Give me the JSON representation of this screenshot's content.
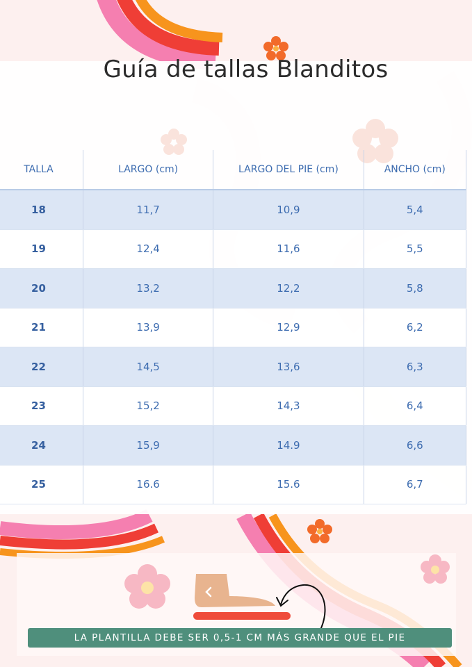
{
  "title": "Guía de tallas Blanditos",
  "table": {
    "headers": [
      "TALLA",
      "LARGO (cm)",
      "LARGO DEL PIE (cm)",
      "ANCHO (cm)"
    ],
    "rows": [
      [
        "18",
        "11,7",
        "10,9",
        "5,4"
      ],
      [
        "19",
        "12,4",
        "11,6",
        "5,5"
      ],
      [
        "20",
        "13,2",
        "12,2",
        "5,8"
      ],
      [
        "21",
        "13,9",
        "12,9",
        "6,2"
      ],
      [
        "22",
        "14,5",
        "13,6",
        "6,3"
      ],
      [
        "23",
        "15,2",
        "14,3",
        "6,4"
      ],
      [
        "24",
        "15,9",
        "14.9",
        "6,6"
      ],
      [
        "25",
        "16.6",
        "15.6",
        "6,7"
      ]
    ]
  },
  "banner": "LA PLANTILLA DEBE SER 0,5-1 CM MÁS GRANDE QUE EL PIE",
  "colors": {
    "background": "#fdf0ef",
    "table_text": "#3d6cb0",
    "row_shade": "#d6e2f3",
    "banner": "#4f8f7c",
    "rainbow_pink": "#f57fb0",
    "rainbow_red": "#ef3e36",
    "rainbow_orange": "#f7941d",
    "flower_orange": "#f26b2a",
    "flower_pink": "#f7b8c4",
    "foot_tan": "#e8b48f",
    "insole_red": "#ef4b3a"
  },
  "icons": [
    "flower-icon",
    "foot-icon",
    "insole-bar",
    "curved-arrow-icon",
    "chevron-left-icon"
  ]
}
